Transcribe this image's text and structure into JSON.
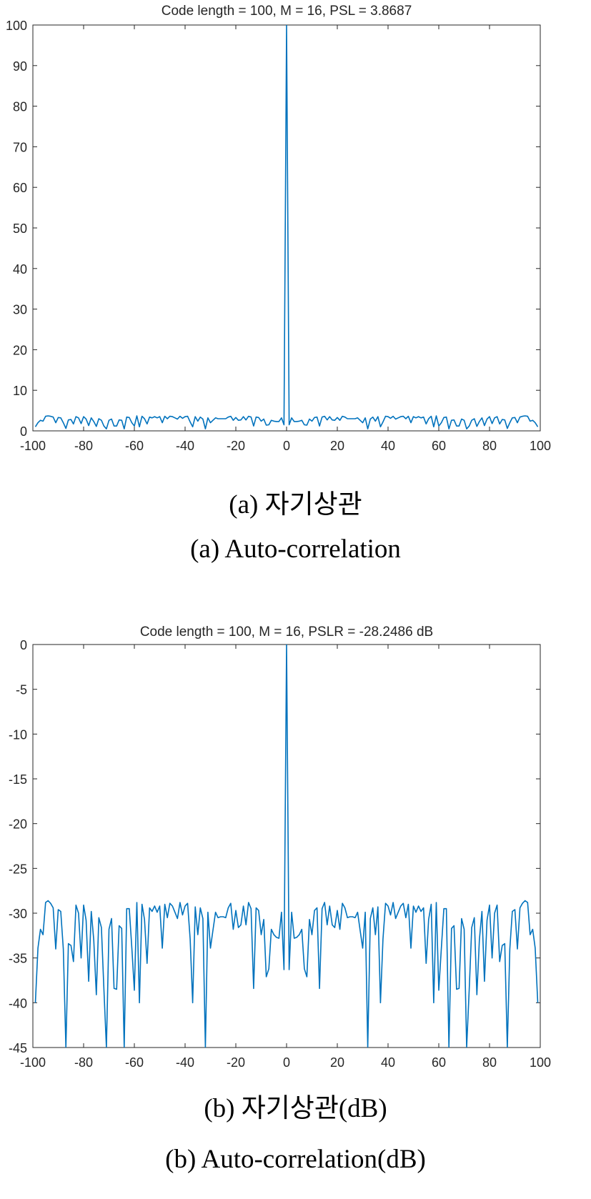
{
  "colors": {
    "line": "#0072BD",
    "axis": "#262626",
    "text": "#262626"
  },
  "captions": {
    "a_ko": "(a)  자기상관",
    "a_en": "(a)  Auto-correlation",
    "b_ko": "(b)  자기상관(dB)",
    "b_en": "(b)  Auto-correlation(dB)"
  },
  "chart_data": [
    {
      "type": "line",
      "title": "Code length = 100, M = 16, PSL = 3.8687",
      "xlabel": "",
      "ylabel": "",
      "xlim": [
        -100,
        100
      ],
      "ylim": [
        0,
        100
      ],
      "xticks": [
        -100,
        -80,
        -60,
        -40,
        -20,
        0,
        20,
        40,
        60,
        80,
        100
      ],
      "yticks": [
        0,
        10,
        20,
        30,
        40,
        50,
        60,
        70,
        80,
        90,
        100
      ],
      "grid": false,
      "box": true,
      "series": [
        {
          "x": [
            -99,
            -98,
            -97,
            -96,
            -95,
            -94,
            -93,
            -92,
            -91,
            -90,
            -89,
            -88,
            -87,
            -86,
            -85,
            -84,
            -83,
            -82,
            -81,
            -80,
            -79,
            -78,
            -77,
            -76,
            -75,
            -74,
            -73,
            -72,
            -71,
            -70,
            -69,
            -68,
            -67,
            -66,
            -65,
            -64,
            -63,
            -62,
            -61,
            -60,
            -59,
            -58,
            -57,
            -56,
            -55,
            -54,
            -53,
            -52,
            -51,
            -50,
            -49,
            -48,
            -47,
            -46,
            -45,
            -44,
            -43,
            -42,
            -41,
            -40,
            -39,
            -38,
            -37,
            -36,
            -35,
            -34,
            -33,
            -32,
            -31,
            -30,
            -29,
            -28,
            -27,
            -26,
            -25,
            -24,
            -23,
            -22,
            -21,
            -20,
            -19,
            -18,
            -17,
            -16,
            -15,
            -14,
            -13,
            -12,
            -11,
            -10,
            -9,
            -8,
            -7,
            -6,
            -5,
            -4,
            -3,
            -2,
            -1,
            0,
            1,
            2,
            3,
            4,
            5,
            6,
            7,
            8,
            9,
            10,
            11,
            12,
            13,
            14,
            15,
            16,
            17,
            18,
            19,
            20,
            21,
            22,
            23,
            24,
            25,
            26,
            27,
            28,
            29,
            30,
            31,
            32,
            33,
            34,
            35,
            36,
            37,
            38,
            39,
            40,
            41,
            42,
            43,
            44,
            45,
            46,
            47,
            48,
            49,
            50,
            51,
            52,
            53,
            54,
            55,
            56,
            57,
            58,
            59,
            60,
            61,
            62,
            63,
            64,
            65,
            66,
            67,
            68,
            69,
            70,
            71,
            72,
            73,
            74,
            75,
            76,
            77,
            78,
            79,
            80,
            81,
            82,
            83,
            84,
            85,
            86,
            87,
            88,
            89,
            90,
            91,
            92,
            93,
            94,
            95,
            96,
            97,
            98,
            99
          ],
          "y": [
            1.0,
            2.0,
            2.6,
            2.4,
            3.6,
            3.7,
            3.6,
            3.4,
            2.0,
            3.3,
            3.2,
            2.0,
            0.6,
            2.7,
            2.8,
            1.7,
            3.5,
            3.2,
            1.8,
            3.5,
            2.9,
            1.3,
            3.2,
            2.3,
            1.1,
            3.0,
            2.6,
            1.2,
            0.5,
            2.6,
            2.9,
            1.2,
            1.2,
            2.7,
            2.6,
            0.5,
            3.4,
            3.3,
            2.0,
            1.2,
            3.7,
            1.0,
            3.6,
            3.0,
            1.7,
            3.4,
            3.2,
            3.5,
            3.2,
            3.5,
            2.0,
            3.6,
            3.0,
            3.6,
            3.5,
            3.2,
            2.9,
            3.6,
            3.1,
            3.5,
            3.6,
            2.2,
            1.0,
            3.5,
            2.4,
            3.4,
            2.9,
            0.5,
            3.2,
            2.0,
            2.6,
            3.2,
            3.0,
            3.0,
            3.0,
            3.0,
            3.4,
            3.6,
            2.6,
            3.3,
            2.6,
            2.7,
            3.5,
            2.7,
            3.6,
            3.4,
            1.2,
            3.4,
            3.3,
            2.4,
            2.9,
            1.4,
            1.5,
            2.6,
            2.4,
            2.3,
            2.3,
            3.2,
            1.5,
            100.0,
            1.5,
            3.2,
            2.3,
            2.3,
            2.4,
            2.6,
            1.5,
            1.4,
            2.9,
            2.4,
            3.3,
            3.4,
            1.2,
            3.4,
            3.6,
            2.7,
            3.5,
            2.7,
            2.6,
            3.3,
            2.6,
            3.6,
            3.4,
            3.0,
            3.0,
            3.0,
            3.0,
            3.2,
            2.6,
            2.0,
            3.2,
            0.5,
            2.9,
            3.4,
            2.4,
            3.5,
            1.0,
            2.2,
            3.6,
            3.5,
            3.1,
            3.6,
            2.9,
            3.2,
            3.5,
            3.6,
            3.0,
            3.6,
            2.0,
            3.5,
            3.2,
            3.5,
            3.2,
            3.4,
            1.7,
            3.0,
            3.6,
            1.0,
            3.7,
            1.2,
            2.0,
            3.3,
            3.4,
            0.5,
            2.6,
            2.7,
            1.2,
            1.2,
            2.9,
            2.6,
            0.5,
            1.2,
            2.6,
            3.0,
            1.1,
            2.3,
            3.2,
            1.3,
            2.9,
            3.5,
            1.8,
            3.2,
            3.5,
            1.7,
            2.8,
            2.7,
            0.6,
            2.0,
            3.2,
            3.3,
            2.0,
            3.4,
            3.6,
            3.7,
            3.6,
            2.4,
            2.6,
            2.0,
            1.0
          ]
        }
      ]
    },
    {
      "type": "line",
      "title": "Code length = 100, M = 16, PSLR = -28.2486 dB",
      "xlabel": "",
      "ylabel": "",
      "xlim": [
        -100,
        100
      ],
      "ylim": [
        -45,
        0
      ],
      "xticks": [
        -100,
        -80,
        -60,
        -40,
        -20,
        0,
        20,
        40,
        60,
        80,
        100
      ],
      "yticks": [
        -45,
        -40,
        -35,
        -30,
        -25,
        -20,
        -15,
        -10,
        -5,
        0
      ],
      "grid": false,
      "box": true,
      "series": [
        {
          "x": [
            -99,
            -98,
            -97,
            -96,
            -95,
            -94,
            -93,
            -92,
            -91,
            -90,
            -89,
            -88,
            -87,
            -86,
            -85,
            -84,
            -83,
            -82,
            -81,
            -80,
            -79,
            -78,
            -77,
            -76,
            -75,
            -74,
            -73,
            -72,
            -71,
            -70,
            -69,
            -68,
            -67,
            -66,
            -65,
            -64,
            -63,
            -62,
            -61,
            -60,
            -59,
            -58,
            -57,
            -56,
            -55,
            -54,
            -53,
            -52,
            -51,
            -50,
            -49,
            -48,
            -47,
            -46,
            -45,
            -44,
            -43,
            -42,
            -41,
            -40,
            -39,
            -38,
            -37,
            -36,
            -35,
            -34,
            -33,
            -32,
            -31,
            -30,
            -29,
            -28,
            -27,
            -26,
            -25,
            -24,
            -23,
            -22,
            -21,
            -20,
            -19,
            -18,
            -17,
            -16,
            -15,
            -14,
            -13,
            -12,
            -11,
            -10,
            -9,
            -8,
            -7,
            -6,
            -5,
            -4,
            -3,
            -2,
            -1,
            0,
            1,
            2,
            3,
            4,
            5,
            6,
            7,
            8,
            9,
            10,
            11,
            12,
            13,
            14,
            15,
            16,
            17,
            18,
            19,
            20,
            21,
            22,
            23,
            24,
            25,
            26,
            27,
            28,
            29,
            30,
            31,
            32,
            33,
            34,
            35,
            36,
            37,
            38,
            39,
            40,
            41,
            42,
            43,
            44,
            45,
            46,
            47,
            48,
            49,
            50,
            51,
            52,
            53,
            54,
            55,
            56,
            57,
            58,
            59,
            60,
            61,
            62,
            63,
            64,
            65,
            66,
            67,
            68,
            69,
            70,
            71,
            72,
            73,
            74,
            75,
            76,
            77,
            78,
            79,
            80,
            81,
            82,
            83,
            84,
            85,
            86,
            87,
            88,
            89,
            90,
            91,
            92,
            93,
            94,
            95,
            96,
            97,
            98,
            99
          ],
          "y": [
            -40.0,
            -33.9,
            -31.8,
            -32.4,
            -28.8,
            -28.6,
            -28.9,
            -29.4,
            -34.0,
            -29.6,
            -29.8,
            -34.0,
            -45.0,
            -33.4,
            -33.6,
            -35.4,
            -29.1,
            -30.0,
            -35.0,
            -29.1,
            -30.8,
            -37.6,
            -29.8,
            -33.0,
            -39.1,
            -30.5,
            -31.6,
            -38.5,
            -45.0,
            -31.8,
            -30.6,
            -38.4,
            -38.5,
            -31.4,
            -31.7,
            -45.0,
            -29.5,
            -29.5,
            -33.9,
            -38.6,
            -28.8,
            -40.0,
            -29.0,
            -30.7,
            -35.6,
            -29.4,
            -29.8,
            -29.2,
            -29.9,
            -29.2,
            -33.9,
            -29.0,
            -30.5,
            -28.9,
            -29.2,
            -29.9,
            -30.6,
            -28.8,
            -30.2,
            -29.2,
            -28.9,
            -32.9,
            -40.0,
            -29.3,
            -32.4,
            -29.4,
            -30.6,
            -45.0,
            -29.9,
            -33.9,
            -31.9,
            -29.9,
            -30.5,
            -30.4,
            -30.4,
            -30.5,
            -29.4,
            -28.9,
            -31.8,
            -29.7,
            -31.6,
            -31.3,
            -29.2,
            -31.3,
            -28.8,
            -29.5,
            -38.4,
            -29.4,
            -29.7,
            -32.4,
            -30.7,
            -37.1,
            -36.2,
            -31.8,
            -32.4,
            -32.7,
            -32.8,
            -29.9,
            -36.3,
            0.0,
            -36.3,
            -29.9,
            -32.8,
            -32.7,
            -32.4,
            -31.8,
            -36.2,
            -37.1,
            -30.7,
            -32.4,
            -29.7,
            -29.4,
            -38.4,
            -29.5,
            -28.8,
            -31.3,
            -29.2,
            -31.3,
            -31.6,
            -29.7,
            -31.8,
            -28.9,
            -29.4,
            -30.5,
            -30.4,
            -30.4,
            -30.5,
            -29.9,
            -31.9,
            -33.9,
            -29.9,
            -45.0,
            -30.6,
            -29.4,
            -32.4,
            -29.3,
            -40.0,
            -32.9,
            -28.9,
            -29.2,
            -30.2,
            -28.8,
            -30.6,
            -29.9,
            -29.2,
            -28.9,
            -30.5,
            -29.0,
            -33.9,
            -29.2,
            -29.9,
            -29.2,
            -29.8,
            -29.4,
            -35.6,
            -30.7,
            -29.0,
            -40.0,
            -28.8,
            -38.6,
            -33.9,
            -29.5,
            -29.5,
            -45.0,
            -31.7,
            -31.4,
            -38.5,
            -38.4,
            -30.6,
            -31.8,
            -45.0,
            -38.5,
            -31.6,
            -30.5,
            -39.1,
            -33.0,
            -29.8,
            -37.6,
            -30.8,
            -29.1,
            -35.0,
            -30.0,
            -29.1,
            -35.4,
            -33.6,
            -33.4,
            -45.0,
            -34.0,
            -29.8,
            -29.6,
            -34.0,
            -29.4,
            -28.9,
            -28.6,
            -28.8,
            -32.4,
            -31.8,
            -33.9,
            -40.0
          ]
        }
      ]
    }
  ]
}
